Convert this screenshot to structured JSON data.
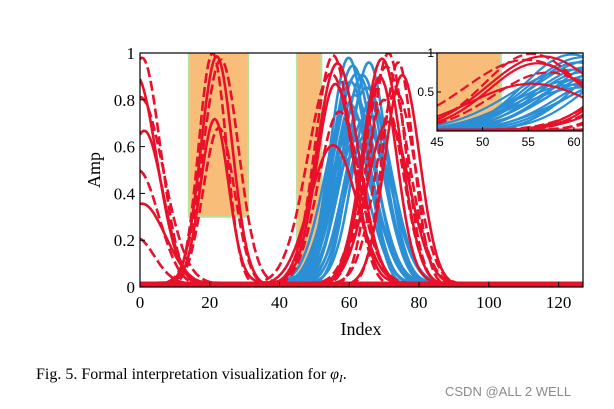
{
  "chart_data": [
    {
      "id": "main",
      "type": "line",
      "title": "",
      "xlabel": "Index",
      "ylabel": "Amp",
      "xlim": [
        0,
        127
      ],
      "ylim": [
        0,
        1
      ],
      "xticks": [
        "0",
        "20",
        "40",
        "60",
        "80",
        "100",
        "120"
      ],
      "xtick_values": [
        0,
        20,
        40,
        60,
        80,
        100,
        120
      ],
      "yticks": [
        "0",
        "0.2",
        "0.4",
        "0.6",
        "0.8",
        "1"
      ],
      "ytick_values": [
        0,
        0.2,
        0.4,
        0.6,
        0.8,
        1
      ],
      "grid": false,
      "highlight_regions": [
        {
          "x0": 14,
          "x1": 31,
          "y0": 0.3,
          "y1": 1.0,
          "color": "#f9bd7a",
          "edge": "#b8e0a0"
        },
        {
          "x0": 45,
          "x1": 52,
          "y0": 0.05,
          "y1": 1.0,
          "color": "#f9bd7a",
          "edge": "#b8e0a0"
        }
      ],
      "series": [
        {
          "name": "blue signals",
          "color": "#2b8fd6",
          "style": "solid",
          "bumps": [
            {
              "center": 61,
              "width": 6,
              "amps": [
                0.98,
                0.94,
                0.9,
                0.86,
                0.82,
                0.78,
                0.74,
                0.7,
                0.66,
                0.62,
                0.58,
                0.54
              ]
            },
            {
              "center": 65,
              "width": 6,
              "amps": [
                0.96,
                0.9,
                0.84,
                0.78,
                0.72,
                0.66,
                0.6
              ]
            }
          ]
        },
        {
          "name": "red signals",
          "color": "#e8102a",
          "style": "dashed",
          "bumps": [
            {
              "center": 22,
              "width": 4.5,
              "amps": [
                1.0,
                0.98,
                0.96,
                0.7,
                0.68
              ]
            },
            {
              "center": 0,
              "width": 6,
              "amps": [
                0.98,
                0.9,
                0.8,
                0.65,
                0.5,
                0.35,
                0.2
              ]
            },
            {
              "center": 56,
              "width": 6,
              "amps": [
                0.99,
                0.95,
                0.9,
                0.85,
                0.75,
                0.6
              ]
            },
            {
              "center": 70,
              "width": 5.5,
              "amps": [
                1.0,
                0.97,
                0.93,
                0.88,
                0.8,
                0.7
              ]
            },
            {
              "center": 74,
              "width": 5,
              "amps": [
                0.96,
                0.9,
                0.82
              ]
            }
          ]
        }
      ]
    },
    {
      "id": "inset",
      "type": "line",
      "xlim": [
        45,
        61
      ],
      "ylim": [
        0,
        1
      ],
      "xticks": [
        "45",
        "50",
        "55",
        "60"
      ],
      "xtick_values": [
        45,
        50,
        55,
        60
      ],
      "yticks": [
        "0.5",
        "1"
      ],
      "ytick_values": [
        0.5,
        1
      ],
      "highlight_regions": [
        {
          "x0": 45,
          "x1": 52,
          "y0": 0,
          "y1": 1,
          "color": "#f9bd7a",
          "edge": "#b8e0a0"
        }
      ]
    }
  ],
  "caption": {
    "prefix": "Fig. 5.   Formal interpretation visualization for",
    "symbol": "φ",
    "subscript": "I",
    "suffix": "."
  },
  "watermark": "CSDN @ALL 2 WELL"
}
